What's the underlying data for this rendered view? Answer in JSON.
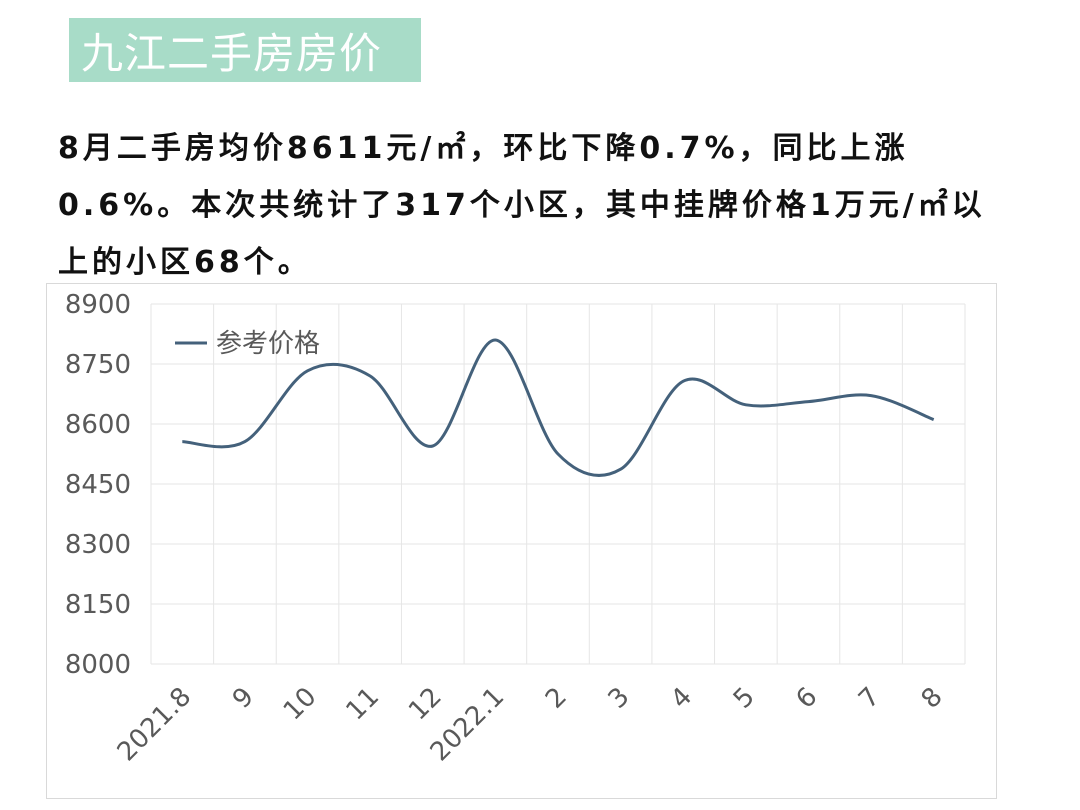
{
  "header": {
    "title": "九江二手房房价",
    "title_bg": "#a8dcc8"
  },
  "summary": {
    "line1": "8月二手房均价8611元/㎡，环比下降0.7%，同比上涨",
    "line2": "0.6%。本次共统计了317个小区，其中挂牌价格1万元/㎡以",
    "line3": "上的小区68个。"
  },
  "chart_data": {
    "type": "line",
    "title": "",
    "xlabel": "",
    "ylabel": "",
    "categories": [
      "2021.8",
      "9",
      "10",
      "11",
      "12",
      "2022.1",
      "2",
      "3",
      "4",
      "5",
      "6",
      "7",
      "8"
    ],
    "series": [
      {
        "name": "参考价格",
        "color": "#44617b",
        "values": [
          8556,
          8556,
          8733,
          8720,
          8545,
          8810,
          8525,
          8487,
          8707,
          8648,
          8656,
          8671,
          8611
        ]
      }
    ],
    "ylim": [
      8000,
      8900
    ],
    "yticks": [
      8000,
      8150,
      8300,
      8450,
      8600,
      8750,
      8900
    ],
    "smooth": true,
    "grid": true,
    "legend_position": "top-left"
  }
}
